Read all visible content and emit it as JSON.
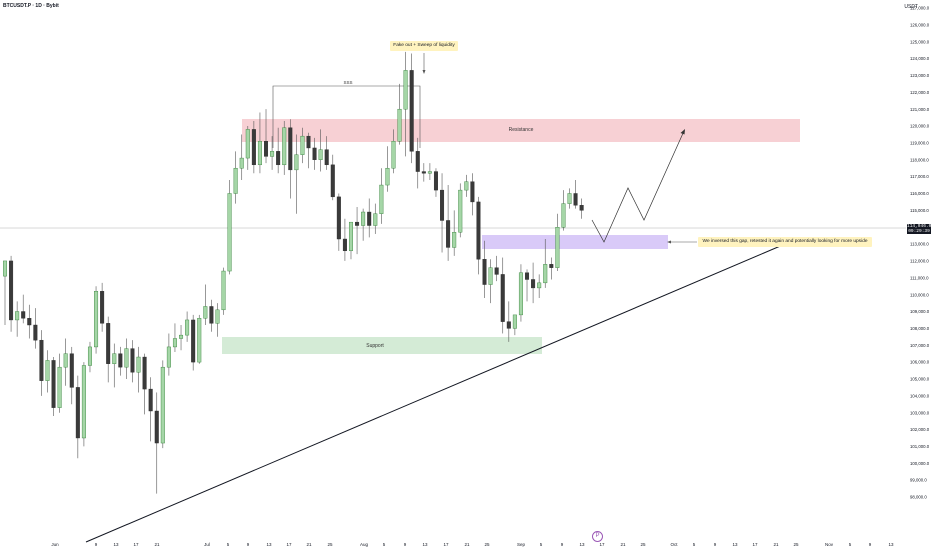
{
  "symbol": {
    "title": "BTCUSDT.P · 1D · Bybit"
  },
  "currency": "USDT",
  "last_price": {
    "value": "114,946.0",
    "countdown": "09:29:39"
  },
  "price_axis_labels": [
    "127,000.0",
    "126,000.0",
    "125,000.0",
    "124,000.0",
    "123,000.0",
    "122,000.0",
    "121,000.0",
    "120,000.0",
    "119,000.0",
    "118,000.0",
    "117,000.0",
    "116,000.0",
    "115,000.0",
    "114,000.0",
    "113,000.0",
    "112,000.0",
    "111,000.0",
    "110,000.0",
    "109,000.0",
    "108,000.0",
    "107,000.0",
    "106,000.0",
    "105,000.0",
    "104,000.0",
    "103,000.0",
    "102,000.0",
    "101,000.0",
    "100,000.0",
    "99,000.0",
    "98,000.0"
  ],
  "time_axis_labels": [
    "Jun",
    "9",
    "13",
    "17",
    "21",
    "Jul",
    "5",
    "9",
    "13",
    "17",
    "21",
    "25",
    "Aug",
    "5",
    "9",
    "13",
    "17",
    "21",
    "25",
    "Sep",
    "5",
    "9",
    "13",
    "17",
    "21",
    "25",
    "Oct",
    "5",
    "9",
    "13",
    "17",
    "21",
    "25",
    "Nov",
    "5",
    "9",
    "13"
  ],
  "annotations": {
    "fakeout": "Fake out + Sweep of liquidity",
    "sss": "SSS",
    "resistance": "Resistance",
    "support": "Support",
    "gap_note": "We inversed this gap, retested it again and potentially looking for more upside"
  },
  "colors": {
    "up": "#a5d6a7",
    "down": "#3a3a3a",
    "resistance": "#f6c8cc",
    "support": "#cfe9d2",
    "gap": "#d5c4f7",
    "note_bg": "#fff3bf",
    "trendline": "#131722"
  },
  "tv_logo_icon": "tv-logo-icon",
  "chart_data": {
    "type": "candlestick",
    "ylim": [
      97500,
      127500
    ],
    "candles": [
      {
        "o": 111100,
        "h": 112000,
        "l": 108200,
        "c": 112000
      },
      {
        "o": 112000,
        "h": 112300,
        "l": 107800,
        "c": 108500
      },
      {
        "o": 108500,
        "h": 109600,
        "l": 107500,
        "c": 109000
      },
      {
        "o": 109000,
        "h": 110000,
        "l": 108300,
        "c": 108600
      },
      {
        "o": 108600,
        "h": 109400,
        "l": 107400,
        "c": 108200
      },
      {
        "o": 108200,
        "h": 109200,
        "l": 106800,
        "c": 107300
      },
      {
        "o": 107300,
        "h": 107900,
        "l": 104000,
        "c": 104900
      },
      {
        "o": 104900,
        "h": 106700,
        "l": 104200,
        "c": 106100
      },
      {
        "o": 106100,
        "h": 106300,
        "l": 102800,
        "c": 103300
      },
      {
        "o": 103300,
        "h": 106500,
        "l": 103000,
        "c": 105700
      },
      {
        "o": 105700,
        "h": 107400,
        "l": 104600,
        "c": 106500
      },
      {
        "o": 106500,
        "h": 106900,
        "l": 103500,
        "c": 104500
      },
      {
        "o": 104500,
        "h": 105200,
        "l": 100300,
        "c": 101500
      },
      {
        "o": 101500,
        "h": 106000,
        "l": 101000,
        "c": 105800
      },
      {
        "o": 105800,
        "h": 107200,
        "l": 105400,
        "c": 106900
      },
      {
        "o": 106900,
        "h": 110500,
        "l": 106500,
        "c": 110200
      },
      {
        "o": 110200,
        "h": 110700,
        "l": 107800,
        "c": 108300
      },
      {
        "o": 108300,
        "h": 108700,
        "l": 104800,
        "c": 105900
      },
      {
        "o": 105900,
        "h": 107100,
        "l": 104500,
        "c": 106500
      },
      {
        "o": 106500,
        "h": 106900,
        "l": 105200,
        "c": 105700
      },
      {
        "o": 105700,
        "h": 107400,
        "l": 105000,
        "c": 106800
      },
      {
        "o": 106800,
        "h": 107300,
        "l": 104800,
        "c": 105400
      },
      {
        "o": 105400,
        "h": 106900,
        "l": 104200,
        "c": 106300
      },
      {
        "o": 106300,
        "h": 106500,
        "l": 102900,
        "c": 104400
      },
      {
        "o": 104400,
        "h": 105100,
        "l": 101300,
        "c": 103100
      },
      {
        "o": 103100,
        "h": 104200,
        "l": 98200,
        "c": 101200
      },
      {
        "o": 101200,
        "h": 106100,
        "l": 100900,
        "c": 105700
      },
      {
        "o": 105700,
        "h": 107700,
        "l": 105200,
        "c": 106900
      },
      {
        "o": 106900,
        "h": 108300,
        "l": 106600,
        "c": 107400
      },
      {
        "o": 107400,
        "h": 108200,
        "l": 106700,
        "c": 107600
      },
      {
        "o": 107600,
        "h": 109000,
        "l": 107200,
        "c": 108500
      },
      {
        "o": 108500,
        "h": 108800,
        "l": 105500,
        "c": 106000
      },
      {
        "o": 106000,
        "h": 108800,
        "l": 105900,
        "c": 108600
      },
      {
        "o": 108600,
        "h": 110600,
        "l": 108200,
        "c": 109300
      },
      {
        "o": 109300,
        "h": 109700,
        "l": 107800,
        "c": 108300
      },
      {
        "o": 108300,
        "h": 109500,
        "l": 107500,
        "c": 109100
      },
      {
        "o": 109100,
        "h": 111600,
        "l": 108800,
        "c": 111400
      },
      {
        "o": 111400,
        "h": 116800,
        "l": 111200,
        "c": 116000
      },
      {
        "o": 116000,
        "h": 118500,
        "l": 115400,
        "c": 117500
      },
      {
        "o": 117500,
        "h": 119500,
        "l": 116800,
        "c": 118100
      },
      {
        "o": 118100,
        "h": 120000,
        "l": 117400,
        "c": 119800
      },
      {
        "o": 119800,
        "h": 120300,
        "l": 117200,
        "c": 117700
      },
      {
        "o": 117700,
        "h": 120800,
        "l": 117200,
        "c": 119100
      },
      {
        "o": 119100,
        "h": 121000,
        "l": 117800,
        "c": 118200
      },
      {
        "o": 118200,
        "h": 119400,
        "l": 117400,
        "c": 118500
      },
      {
        "o": 118500,
        "h": 119900,
        "l": 117200,
        "c": 117700
      },
      {
        "o": 117700,
        "h": 120300,
        "l": 117100,
        "c": 119900
      },
      {
        "o": 119900,
        "h": 120400,
        "l": 115700,
        "c": 117400
      },
      {
        "o": 117400,
        "h": 119500,
        "l": 114800,
        "c": 118300
      },
      {
        "o": 118300,
        "h": 119900,
        "l": 117800,
        "c": 119400
      },
      {
        "o": 119400,
        "h": 119600,
        "l": 117500,
        "c": 118700
      },
      {
        "o": 118700,
        "h": 119300,
        "l": 117400,
        "c": 118000
      },
      {
        "o": 118000,
        "h": 119800,
        "l": 117300,
        "c": 118600
      },
      {
        "o": 118600,
        "h": 119400,
        "l": 117400,
        "c": 117700
      },
      {
        "o": 117700,
        "h": 118300,
        "l": 115600,
        "c": 115800
      },
      {
        "o": 115800,
        "h": 116000,
        "l": 112600,
        "c": 113300
      },
      {
        "o": 113300,
        "h": 114500,
        "l": 112000,
        "c": 112600
      },
      {
        "o": 112600,
        "h": 114000,
        "l": 112100,
        "c": 114300
      },
      {
        "o": 114300,
        "h": 115200,
        "l": 112400,
        "c": 114100
      },
      {
        "o": 114100,
        "h": 115100,
        "l": 113200,
        "c": 114900
      },
      {
        "o": 114900,
        "h": 115700,
        "l": 113400,
        "c": 114100
      },
      {
        "o": 114100,
        "h": 115400,
        "l": 113600,
        "c": 114800
      },
      {
        "o": 114800,
        "h": 117500,
        "l": 114200,
        "c": 116500
      },
      {
        "o": 116500,
        "h": 118800,
        "l": 116100,
        "c": 117500
      },
      {
        "o": 117500,
        "h": 119800,
        "l": 117200,
        "c": 119100
      },
      {
        "o": 119100,
        "h": 122500,
        "l": 118900,
        "c": 121000
      },
      {
        "o": 121000,
        "h": 124400,
        "l": 118200,
        "c": 123300
      },
      {
        "o": 123300,
        "h": 124300,
        "l": 117800,
        "c": 118500
      },
      {
        "o": 118500,
        "h": 119300,
        "l": 116300,
        "c": 117300
      },
      {
        "o": 117300,
        "h": 117800,
        "l": 116700,
        "c": 117200
      },
      {
        "o": 117200,
        "h": 117800,
        "l": 116800,
        "c": 117300
      },
      {
        "o": 117300,
        "h": 117500,
        "l": 115800,
        "c": 116200
      },
      {
        "o": 116200,
        "h": 117200,
        "l": 112500,
        "c": 114400
      },
      {
        "o": 114400,
        "h": 116500,
        "l": 112000,
        "c": 112800
      },
      {
        "o": 112800,
        "h": 115000,
        "l": 112300,
        "c": 113700
      },
      {
        "o": 113700,
        "h": 116600,
        "l": 113400,
        "c": 116200
      },
      {
        "o": 116200,
        "h": 117100,
        "l": 115800,
        "c": 116700
      },
      {
        "o": 116700,
        "h": 117200,
        "l": 114700,
        "c": 115500
      },
      {
        "o": 115500,
        "h": 115800,
        "l": 111200,
        "c": 112100
      },
      {
        "o": 112100,
        "h": 113200,
        "l": 109800,
        "c": 110600
      },
      {
        "o": 110600,
        "h": 112100,
        "l": 109500,
        "c": 111600
      },
      {
        "o": 111600,
        "h": 112300,
        "l": 110800,
        "c": 111200
      },
      {
        "o": 111200,
        "h": 112200,
        "l": 107700,
        "c": 108400
      },
      {
        "o": 108400,
        "h": 109600,
        "l": 107200,
        "c": 108000
      },
      {
        "o": 108000,
        "h": 108700,
        "l": 107600,
        "c": 108800
      },
      {
        "o": 108800,
        "h": 111800,
        "l": 108400,
        "c": 111300
      },
      {
        "o": 111300,
        "h": 111500,
        "l": 109600,
        "c": 110900
      },
      {
        "o": 110900,
        "h": 111900,
        "l": 109500,
        "c": 110400
      },
      {
        "o": 110400,
        "h": 111200,
        "l": 109800,
        "c": 110700
      },
      {
        "o": 110700,
        "h": 113300,
        "l": 110400,
        "c": 111800
      },
      {
        "o": 111800,
        "h": 112200,
        "l": 110900,
        "c": 111600
      },
      {
        "o": 111600,
        "h": 114800,
        "l": 111400,
        "c": 114000
      },
      {
        "o": 114000,
        "h": 116200,
        "l": 113800,
        "c": 115400
      },
      {
        "o": 115400,
        "h": 116300,
        "l": 115100,
        "c": 116000
      },
      {
        "o": 116000,
        "h": 116800,
        "l": 115100,
        "c": 115300
      },
      {
        "o": 115300,
        "h": 115700,
        "l": 114500,
        "c": 115000
      }
    ]
  }
}
